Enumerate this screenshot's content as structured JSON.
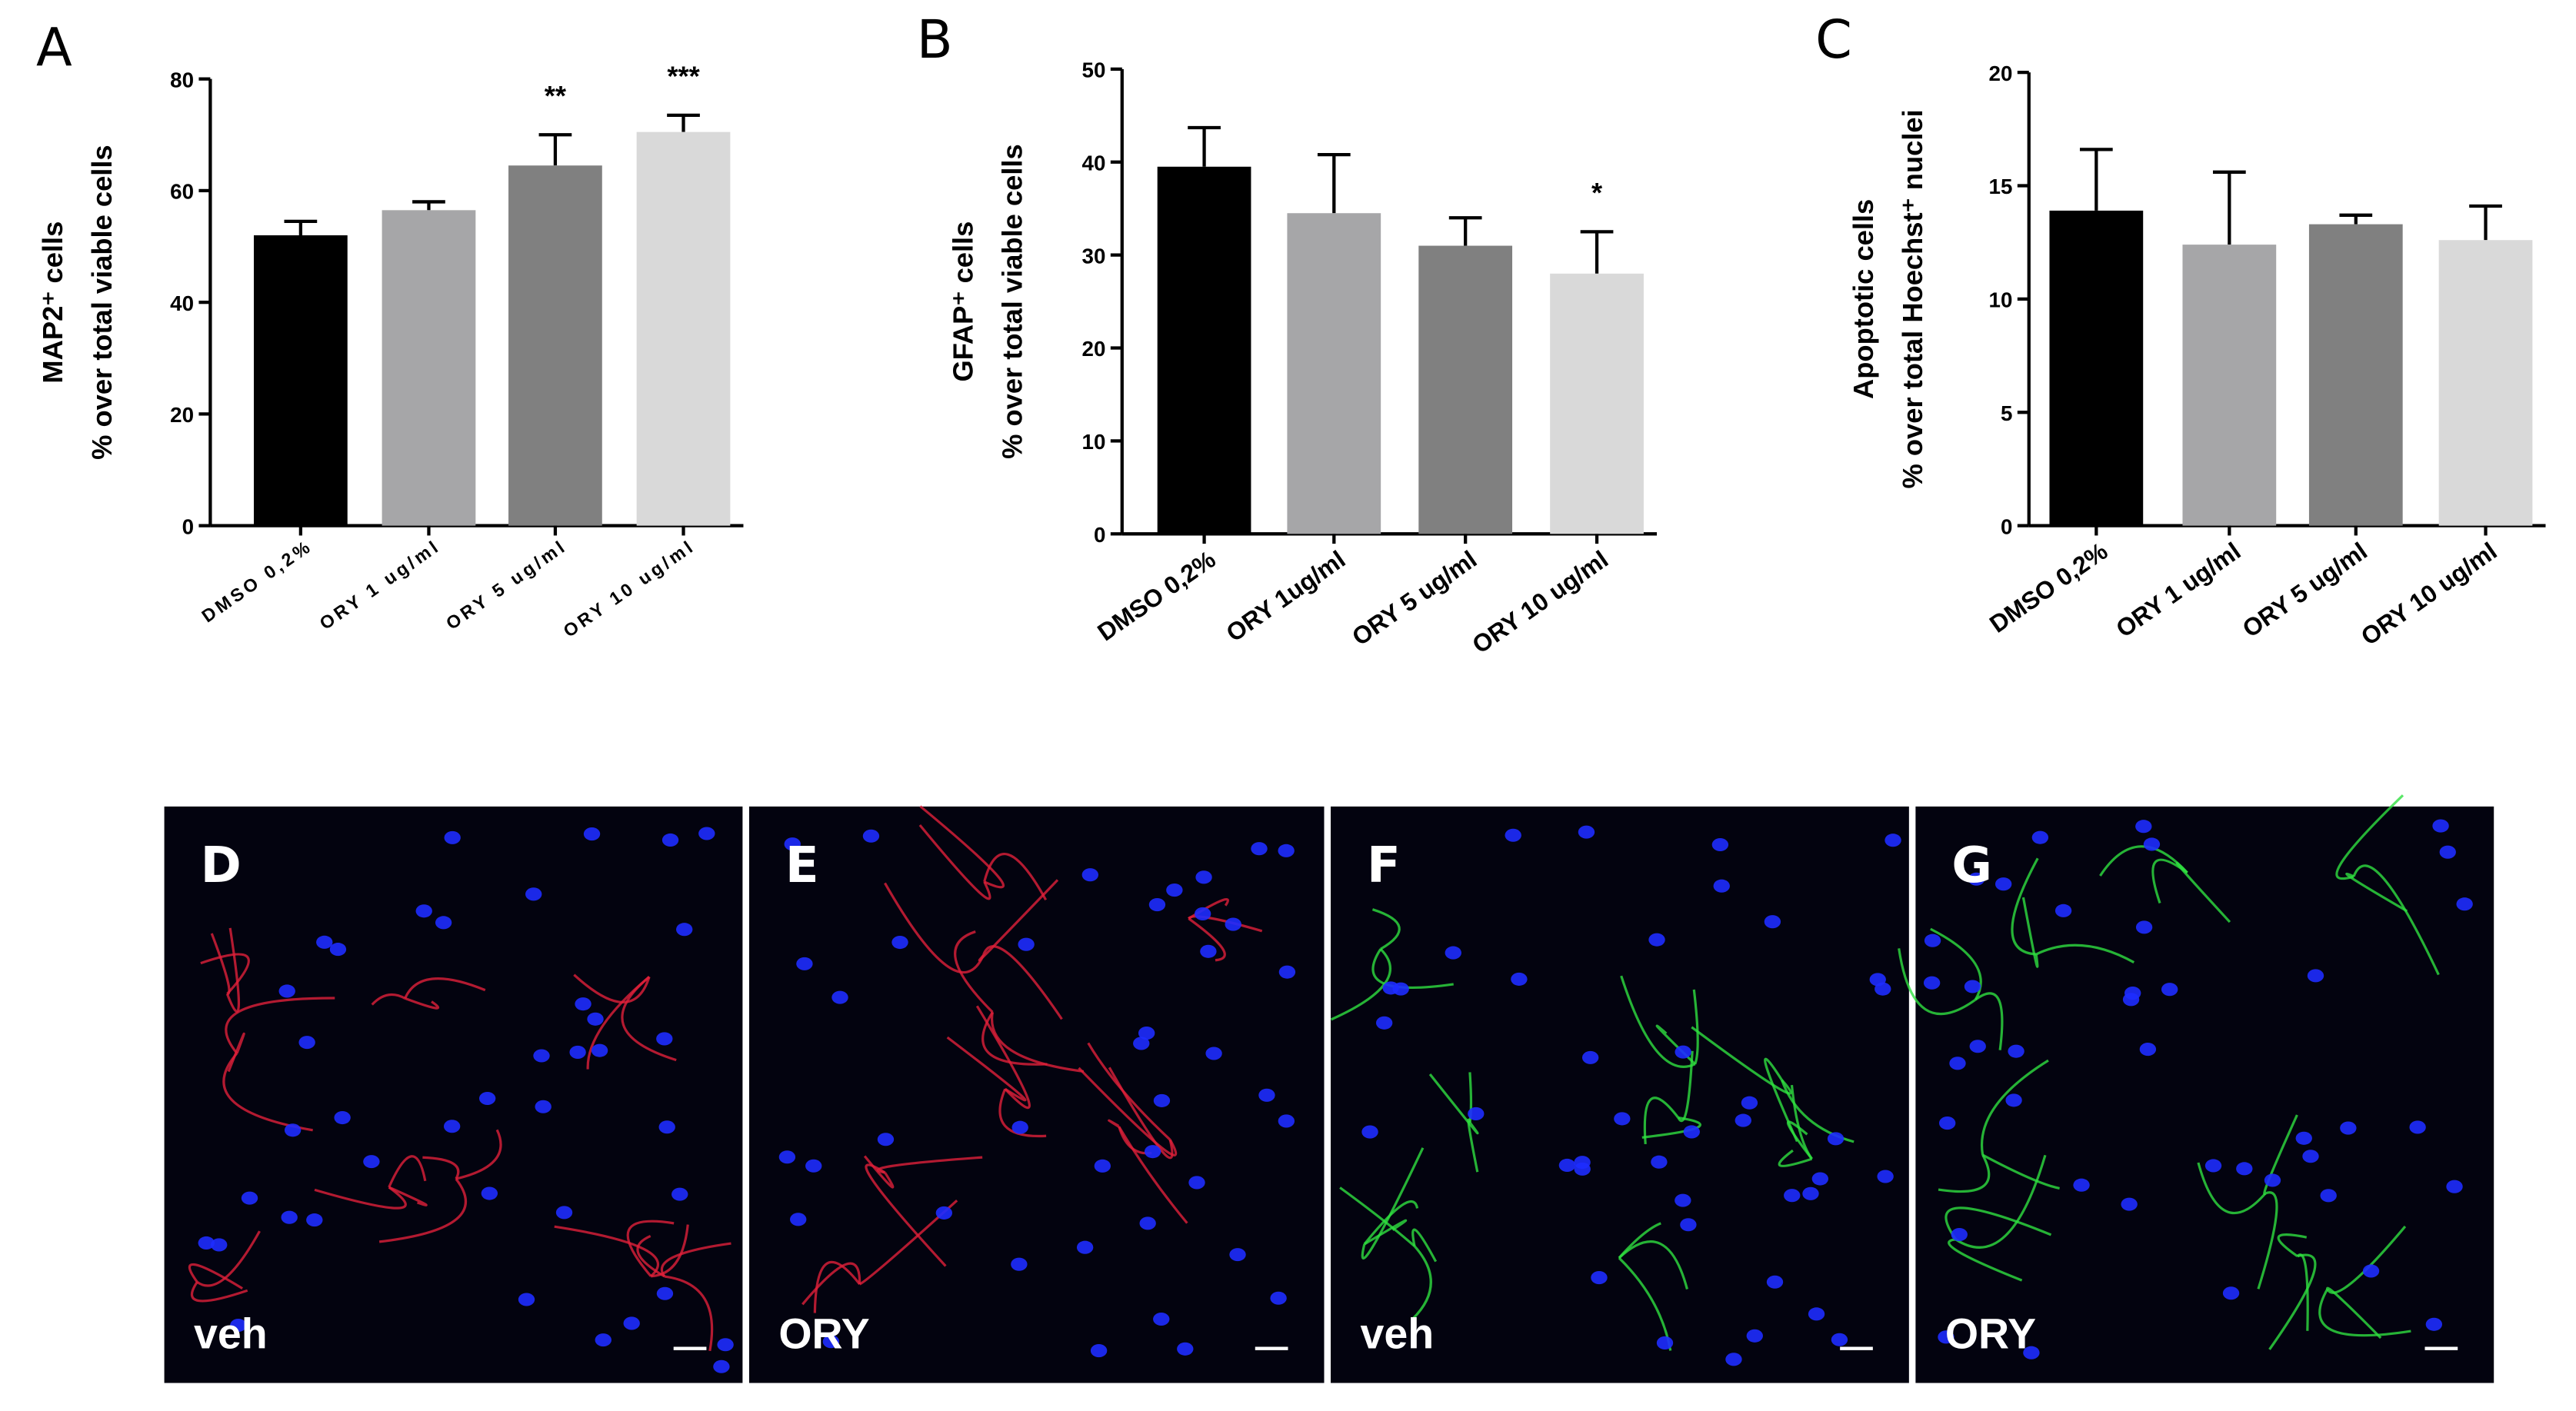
{
  "chart_data": [
    {
      "type": "bar",
      "panel": "A",
      "ylabel": [
        "MAP2⁺ cells",
        "% over total viable cells"
      ],
      "categories": [
        "DMSO 0,2%",
        "ORY 1 ug/ml",
        "ORY 5 ug/ml",
        "ORY 10 ug/ml"
      ],
      "values": [
        52,
        56.5,
        64.5,
        70.5
      ],
      "errors": [
        2.5,
        1.5,
        5.5,
        3
      ],
      "significance": [
        null,
        null,
        "**",
        "***"
      ],
      "colors": [
        "#000000",
        "#a6a6a8",
        "#808080",
        "#d9d9d9"
      ],
      "ylim": [
        0,
        80
      ],
      "yticks": [
        0,
        20,
        40,
        60,
        80
      ]
    },
    {
      "type": "bar",
      "panel": "B",
      "ylabel": [
        "GFAP⁺ cells",
        "% over total viable cells"
      ],
      "categories": [
        "DMSO 0,2%",
        "ORY 1ug/ml",
        "ORY 5 ug/ml",
        "ORY 10 ug/ml"
      ],
      "values": [
        39.5,
        34.5,
        31,
        28
      ],
      "errors": [
        4.2,
        6.3,
        3,
        4.5
      ],
      "significance": [
        null,
        null,
        null,
        "*"
      ],
      "colors": [
        "#000000",
        "#a6a6a8",
        "#808080",
        "#d9d9d9"
      ],
      "ylim": [
        0,
        50
      ],
      "yticks": [
        0,
        10,
        20,
        30,
        40,
        50
      ]
    },
    {
      "type": "bar",
      "panel": "C",
      "ylabel": [
        "Apoptotic cells",
        "% over total Hoechst⁺ nuclei"
      ],
      "categories": [
        "DMSO 0,2%",
        "ORY 1 ug/ml",
        "ORY 5 ug/ml",
        "ORY 10 ug/ml"
      ],
      "values": [
        13.9,
        12.4,
        13.3,
        12.6
      ],
      "errors": [
        2.7,
        3.2,
        0.4,
        1.5
      ],
      "significance": [
        null,
        null,
        null,
        null
      ],
      "colors": [
        "#000000",
        "#a6a6a8",
        "#808080",
        "#d9d9d9"
      ],
      "ylim": [
        0,
        20
      ],
      "yticks": [
        0,
        5,
        10,
        15,
        20
      ]
    }
  ],
  "images": [
    {
      "panel": "D",
      "label": "veh",
      "stain": "#e0203a"
    },
    {
      "panel": "E",
      "label": "ORY",
      "stain": "#e0203a"
    },
    {
      "panel": "F",
      "label": "veh",
      "stain": "#30e040"
    },
    {
      "panel": "G",
      "label": "ORY",
      "stain": "#30e040"
    }
  ]
}
